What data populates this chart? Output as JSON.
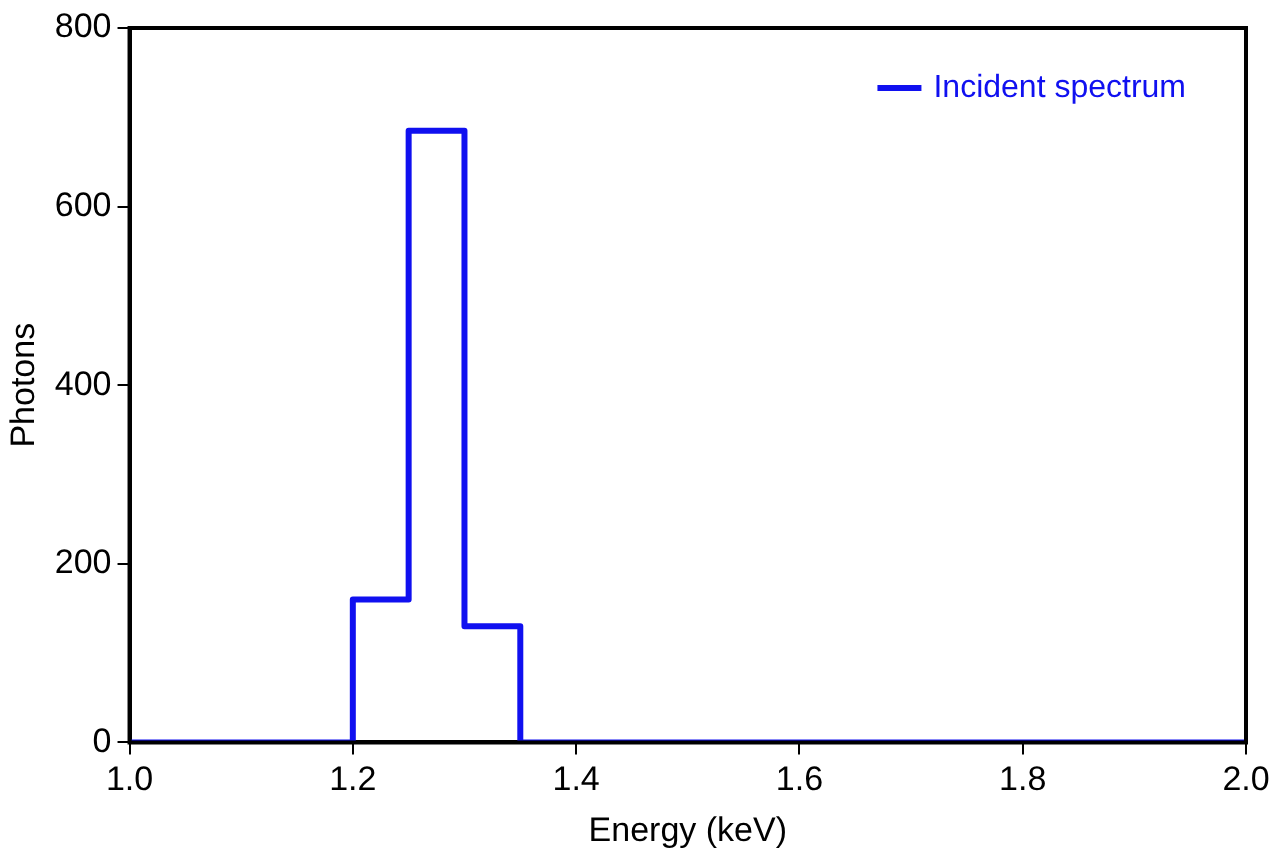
{
  "chart_data": {
    "type": "step",
    "xlabel": "Energy (keV)",
    "ylabel": "Photons",
    "x": [
      1.0,
      1.2,
      1.25,
      1.3,
      1.35,
      2.0
    ],
    "series": [
      {
        "name": "Incident spectrum",
        "color": "#1010f0",
        "values": [
          0,
          160,
          685,
          130,
          0,
          0
        ]
      }
    ],
    "xlim": [
      1.0,
      2.0
    ],
    "xticks": [
      {
        "value": 1.0,
        "label": "1.0"
      },
      {
        "value": 1.2,
        "label": "1.2"
      },
      {
        "value": 1.4,
        "label": "1.4"
      },
      {
        "value": 1.6,
        "label": "1.6"
      },
      {
        "value": 1.8,
        "label": "1.8"
      },
      {
        "value": 2.0,
        "label": "2.0"
      }
    ],
    "ylim": [
      0,
      800
    ],
    "yticks": [
      0,
      200,
      400,
      600,
      800
    ],
    "grid": false,
    "legend": "top right"
  }
}
